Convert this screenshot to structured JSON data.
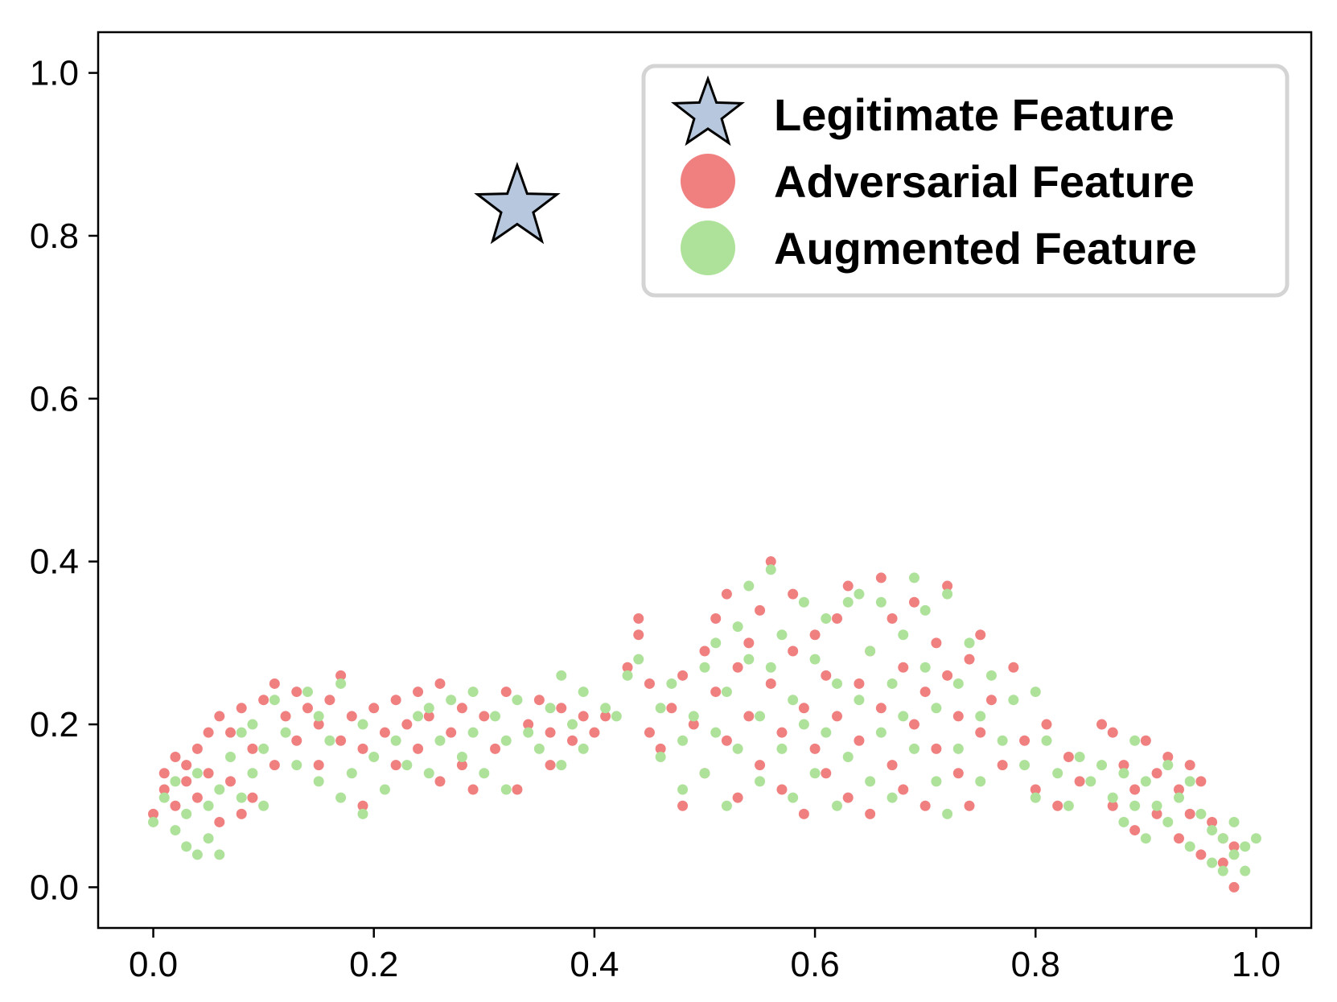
{
  "chart_data": {
    "type": "scatter",
    "xlim": [
      -0.05,
      1.05
    ],
    "ylim": [
      -0.05,
      1.05
    ],
    "x_ticks": [
      "0.0",
      "0.2",
      "0.4",
      "0.6",
      "0.8",
      "1.0"
    ],
    "y_ticks": [
      "0.0",
      "0.2",
      "0.4",
      "0.6",
      "0.8",
      "1.0"
    ],
    "grid": false,
    "legend_position": "top-right",
    "title": "",
    "xlabel": "",
    "ylabel": "",
    "series": [
      {
        "name": "Legitimate Feature",
        "marker": "star",
        "color": "#b7c8de",
        "points": [
          [
            0.33,
            0.835
          ]
        ]
      },
      {
        "name": "Adversarial Feature",
        "marker": "circle",
        "color": "#f08080",
        "points": [
          [
            0.0,
            0.09
          ],
          [
            0.01,
            0.14
          ],
          [
            0.01,
            0.12
          ],
          [
            0.02,
            0.16
          ],
          [
            0.02,
            0.1
          ],
          [
            0.03,
            0.15
          ],
          [
            0.03,
            0.13
          ],
          [
            0.04,
            0.17
          ],
          [
            0.04,
            0.11
          ],
          [
            0.05,
            0.19
          ],
          [
            0.05,
            0.14
          ],
          [
            0.06,
            0.21
          ],
          [
            0.06,
            0.08
          ],
          [
            0.07,
            0.19
          ],
          [
            0.07,
            0.13
          ],
          [
            0.08,
            0.22
          ],
          [
            0.08,
            0.09
          ],
          [
            0.09,
            0.17
          ],
          [
            0.09,
            0.11
          ],
          [
            0.1,
            0.23
          ],
          [
            0.11,
            0.25
          ],
          [
            0.11,
            0.15
          ],
          [
            0.12,
            0.21
          ],
          [
            0.13,
            0.24
          ],
          [
            0.13,
            0.18
          ],
          [
            0.14,
            0.22
          ],
          [
            0.15,
            0.2
          ],
          [
            0.15,
            0.15
          ],
          [
            0.16,
            0.23
          ],
          [
            0.17,
            0.26
          ],
          [
            0.17,
            0.18
          ],
          [
            0.18,
            0.21
          ],
          [
            0.19,
            0.17
          ],
          [
            0.19,
            0.1
          ],
          [
            0.2,
            0.22
          ],
          [
            0.21,
            0.19
          ],
          [
            0.22,
            0.23
          ],
          [
            0.22,
            0.15
          ],
          [
            0.23,
            0.2
          ],
          [
            0.24,
            0.24
          ],
          [
            0.24,
            0.17
          ],
          [
            0.25,
            0.21
          ],
          [
            0.26,
            0.13
          ],
          [
            0.26,
            0.25
          ],
          [
            0.27,
            0.19
          ],
          [
            0.28,
            0.22
          ],
          [
            0.28,
            0.15
          ],
          [
            0.29,
            0.12
          ],
          [
            0.3,
            0.21
          ],
          [
            0.31,
            0.17
          ],
          [
            0.32,
            0.24
          ],
          [
            0.33,
            0.12
          ],
          [
            0.34,
            0.2
          ],
          [
            0.35,
            0.23
          ],
          [
            0.36,
            0.15
          ],
          [
            0.36,
            0.19
          ],
          [
            0.37,
            0.22
          ],
          [
            0.38,
            0.18
          ],
          [
            0.39,
            0.21
          ],
          [
            0.4,
            0.19
          ],
          [
            0.41,
            0.21
          ],
          [
            0.43,
            0.27
          ],
          [
            0.44,
            0.31
          ],
          [
            0.44,
            0.33
          ],
          [
            0.45,
            0.25
          ],
          [
            0.45,
            0.19
          ],
          [
            0.46,
            0.17
          ],
          [
            0.47,
            0.22
          ],
          [
            0.48,
            0.1
          ],
          [
            0.48,
            0.26
          ],
          [
            0.49,
            0.2
          ],
          [
            0.5,
            0.14
          ],
          [
            0.5,
            0.29
          ],
          [
            0.51,
            0.33
          ],
          [
            0.51,
            0.24
          ],
          [
            0.52,
            0.18
          ],
          [
            0.52,
            0.36
          ],
          [
            0.53,
            0.27
          ],
          [
            0.53,
            0.11
          ],
          [
            0.54,
            0.21
          ],
          [
            0.54,
            0.3
          ],
          [
            0.55,
            0.15
          ],
          [
            0.55,
            0.34
          ],
          [
            0.56,
            0.4
          ],
          [
            0.56,
            0.25
          ],
          [
            0.57,
            0.19
          ],
          [
            0.57,
            0.12
          ],
          [
            0.58,
            0.29
          ],
          [
            0.58,
            0.36
          ],
          [
            0.59,
            0.22
          ],
          [
            0.59,
            0.09
          ],
          [
            0.6,
            0.31
          ],
          [
            0.6,
            0.17
          ],
          [
            0.61,
            0.26
          ],
          [
            0.61,
            0.14
          ],
          [
            0.62,
            0.33
          ],
          [
            0.62,
            0.21
          ],
          [
            0.63,
            0.37
          ],
          [
            0.63,
            0.11
          ],
          [
            0.64,
            0.25
          ],
          [
            0.64,
            0.18
          ],
          [
            0.65,
            0.29
          ],
          [
            0.65,
            0.09
          ],
          [
            0.66,
            0.38
          ],
          [
            0.66,
            0.22
          ],
          [
            0.67,
            0.15
          ],
          [
            0.67,
            0.33
          ],
          [
            0.68,
            0.27
          ],
          [
            0.68,
            0.12
          ],
          [
            0.69,
            0.35
          ],
          [
            0.69,
            0.2
          ],
          [
            0.7,
            0.24
          ],
          [
            0.7,
            0.1
          ],
          [
            0.71,
            0.3
          ],
          [
            0.71,
            0.17
          ],
          [
            0.72,
            0.37
          ],
          [
            0.72,
            0.26
          ],
          [
            0.73,
            0.14
          ],
          [
            0.73,
            0.21
          ],
          [
            0.74,
            0.28
          ],
          [
            0.74,
            0.1
          ],
          [
            0.75,
            0.31
          ],
          [
            0.75,
            0.19
          ],
          [
            0.76,
            0.23
          ],
          [
            0.77,
            0.15
          ],
          [
            0.78,
            0.27
          ],
          [
            0.79,
            0.18
          ],
          [
            0.8,
            0.12
          ],
          [
            0.81,
            0.2
          ],
          [
            0.82,
            0.1
          ],
          [
            0.83,
            0.16
          ],
          [
            0.84,
            0.13
          ],
          [
            0.86,
            0.2
          ],
          [
            0.87,
            0.19
          ],
          [
            0.87,
            0.1
          ],
          [
            0.88,
            0.15
          ],
          [
            0.89,
            0.07
          ],
          [
            0.89,
            0.12
          ],
          [
            0.9,
            0.18
          ],
          [
            0.91,
            0.14
          ],
          [
            0.91,
            0.09
          ],
          [
            0.92,
            0.16
          ],
          [
            0.93,
            0.12
          ],
          [
            0.93,
            0.06
          ],
          [
            0.94,
            0.15
          ],
          [
            0.94,
            0.09
          ],
          [
            0.95,
            0.04
          ],
          [
            0.95,
            0.13
          ],
          [
            0.96,
            0.08
          ],
          [
            0.97,
            0.03
          ],
          [
            0.97,
            0.06
          ],
          [
            0.98,
            0.0
          ],
          [
            0.98,
            0.05
          ]
        ]
      },
      {
        "name": "Augmented Feature",
        "marker": "circle",
        "color": "#aee29a",
        "points": [
          [
            0.0,
            0.08
          ],
          [
            0.01,
            0.11
          ],
          [
            0.02,
            0.13
          ],
          [
            0.02,
            0.07
          ],
          [
            0.03,
            0.05
          ],
          [
            0.03,
            0.09
          ],
          [
            0.04,
            0.04
          ],
          [
            0.04,
            0.14
          ],
          [
            0.05,
            0.06
          ],
          [
            0.05,
            0.1
          ],
          [
            0.06,
            0.04
          ],
          [
            0.06,
            0.12
          ],
          [
            0.07,
            0.16
          ],
          [
            0.08,
            0.19
          ],
          [
            0.08,
            0.11
          ],
          [
            0.09,
            0.14
          ],
          [
            0.09,
            0.2
          ],
          [
            0.1,
            0.1
          ],
          [
            0.1,
            0.17
          ],
          [
            0.11,
            0.23
          ],
          [
            0.12,
            0.19
          ],
          [
            0.13,
            0.15
          ],
          [
            0.14,
            0.24
          ],
          [
            0.15,
            0.21
          ],
          [
            0.15,
            0.13
          ],
          [
            0.16,
            0.18
          ],
          [
            0.17,
            0.25
          ],
          [
            0.17,
            0.11
          ],
          [
            0.18,
            0.14
          ],
          [
            0.19,
            0.09
          ],
          [
            0.19,
            0.2
          ],
          [
            0.2,
            0.16
          ],
          [
            0.21,
            0.12
          ],
          [
            0.22,
            0.18
          ],
          [
            0.23,
            0.15
          ],
          [
            0.24,
            0.21
          ],
          [
            0.25,
            0.14
          ],
          [
            0.25,
            0.22
          ],
          [
            0.26,
            0.18
          ],
          [
            0.27,
            0.23
          ],
          [
            0.28,
            0.16
          ],
          [
            0.29,
            0.19
          ],
          [
            0.29,
            0.24
          ],
          [
            0.3,
            0.14
          ],
          [
            0.31,
            0.21
          ],
          [
            0.32,
            0.18
          ],
          [
            0.32,
            0.12
          ],
          [
            0.33,
            0.23
          ],
          [
            0.34,
            0.19
          ],
          [
            0.35,
            0.17
          ],
          [
            0.36,
            0.22
          ],
          [
            0.37,
            0.15
          ],
          [
            0.37,
            0.26
          ],
          [
            0.38,
            0.2
          ],
          [
            0.39,
            0.24
          ],
          [
            0.39,
            0.17
          ],
          [
            0.41,
            0.22
          ],
          [
            0.42,
            0.21
          ],
          [
            0.43,
            0.26
          ],
          [
            0.44,
            0.28
          ],
          [
            0.46,
            0.22
          ],
          [
            0.46,
            0.16
          ],
          [
            0.47,
            0.25
          ],
          [
            0.48,
            0.18
          ],
          [
            0.48,
            0.12
          ],
          [
            0.49,
            0.21
          ],
          [
            0.5,
            0.27
          ],
          [
            0.5,
            0.14
          ],
          [
            0.51,
            0.3
          ],
          [
            0.51,
            0.19
          ],
          [
            0.52,
            0.24
          ],
          [
            0.52,
            0.1
          ],
          [
            0.53,
            0.32
          ],
          [
            0.53,
            0.17
          ],
          [
            0.54,
            0.28
          ],
          [
            0.54,
            0.37
          ],
          [
            0.55,
            0.21
          ],
          [
            0.55,
            0.13
          ],
          [
            0.56,
            0.39
          ],
          [
            0.56,
            0.27
          ],
          [
            0.57,
            0.17
          ],
          [
            0.57,
            0.31
          ],
          [
            0.58,
            0.23
          ],
          [
            0.58,
            0.11
          ],
          [
            0.59,
            0.35
          ],
          [
            0.59,
            0.2
          ],
          [
            0.6,
            0.28
          ],
          [
            0.6,
            0.14
          ],
          [
            0.61,
            0.33
          ],
          [
            0.61,
            0.19
          ],
          [
            0.62,
            0.25
          ],
          [
            0.62,
            0.1
          ],
          [
            0.63,
            0.35
          ],
          [
            0.63,
            0.16
          ],
          [
            0.64,
            0.23
          ],
          [
            0.64,
            0.36
          ],
          [
            0.65,
            0.29
          ],
          [
            0.65,
            0.13
          ],
          [
            0.66,
            0.19
          ],
          [
            0.66,
            0.35
          ],
          [
            0.67,
            0.25
          ],
          [
            0.67,
            0.11
          ],
          [
            0.68,
            0.31
          ],
          [
            0.68,
            0.21
          ],
          [
            0.69,
            0.38
          ],
          [
            0.69,
            0.17
          ],
          [
            0.7,
            0.27
          ],
          [
            0.7,
            0.34
          ],
          [
            0.71,
            0.22
          ],
          [
            0.71,
            0.13
          ],
          [
            0.72,
            0.36
          ],
          [
            0.72,
            0.09
          ],
          [
            0.73,
            0.25
          ],
          [
            0.73,
            0.17
          ],
          [
            0.74,
            0.3
          ],
          [
            0.75,
            0.21
          ],
          [
            0.75,
            0.13
          ],
          [
            0.76,
            0.26
          ],
          [
            0.77,
            0.18
          ],
          [
            0.78,
            0.23
          ],
          [
            0.79,
            0.15
          ],
          [
            0.8,
            0.24
          ],
          [
            0.8,
            0.11
          ],
          [
            0.81,
            0.18
          ],
          [
            0.82,
            0.14
          ],
          [
            0.83,
            0.1
          ],
          [
            0.84,
            0.16
          ],
          [
            0.85,
            0.13
          ],
          [
            0.86,
            0.15
          ],
          [
            0.87,
            0.11
          ],
          [
            0.88,
            0.14
          ],
          [
            0.88,
            0.08
          ],
          [
            0.89,
            0.18
          ],
          [
            0.89,
            0.1
          ],
          [
            0.9,
            0.13
          ],
          [
            0.9,
            0.06
          ],
          [
            0.91,
            0.1
          ],
          [
            0.92,
            0.15
          ],
          [
            0.92,
            0.08
          ],
          [
            0.93,
            0.11
          ],
          [
            0.94,
            0.05
          ],
          [
            0.94,
            0.13
          ],
          [
            0.95,
            0.09
          ],
          [
            0.96,
            0.07
          ],
          [
            0.96,
            0.03
          ],
          [
            0.97,
            0.06
          ],
          [
            0.97,
            0.02
          ],
          [
            0.98,
            0.04
          ],
          [
            0.98,
            0.08
          ],
          [
            0.99,
            0.05
          ],
          [
            0.99,
            0.02
          ],
          [
            1.0,
            0.06
          ]
        ]
      }
    ]
  }
}
